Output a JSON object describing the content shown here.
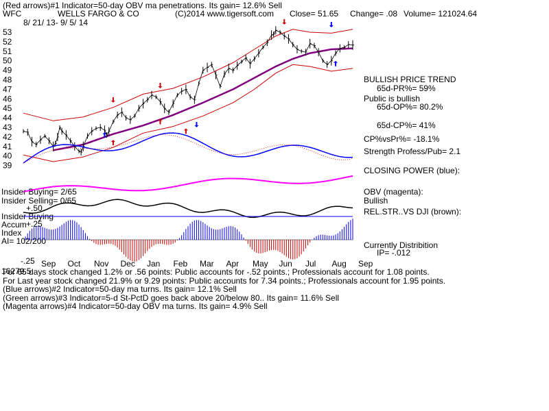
{
  "header": {
    "line1": "(Red arrows)#1 Indicator=50-day OBV ma penetrations. Its gain= 12.6% Sell",
    "ticker": "WFC",
    "company": "WELLS FARGO & CO",
    "copyright": "(C)2014 www.tigersoft.com",
    "close": "Close=  51.65",
    "change": "Change= .08",
    "volume": "Volume= 121024.64",
    "date_range": "8/ 21/ 13- 9/ 5/ 14"
  },
  "right_panel": {
    "trend_title": "BULLISH PRICE TREND",
    "pr65": "65d-PR%= 59%",
    "public": "Public is bullish",
    "op65": "65d-OP%= 80.2%",
    "cp65": "65d-CP%= 41%",
    "cpvspr": "CP%vsPr%= -18.1%",
    "strength": "Strength Profess/Pub= 2.1",
    "closing_power": "CLOSING POWER (blue):",
    "obv": "OBV (magenta):",
    "obv_state": "Bullish",
    "relstr": "REL.STR..VS DJI (brown):",
    "dist": "Currently Distribition",
    "ip": "IP= -.012"
  },
  "left_panel": {
    "insider_buying": "Insider Buying= 2/65",
    "insider_selling": "Insider Selling= 0/65",
    "insider_buying2": "Insider Buying",
    "accum": "Accum",
    "index": "Index",
    "ai": "AI= 102/200",
    "plus25": "+.25",
    "plus50": "+.50",
    "minus25": "-.25",
    "overlap": "16279.5"
  },
  "footer": {
    "line1": "For 65 days stock changed  1.2% or  .56 points:  Public accounts for -.52 points.;  Professionals account for  1.08 points.",
    "line2": "For Last year stock changed  21.9% or  9.29 points:  Public accounts for  7.34 points.;  Professionals account for  1.95 points.",
    "line3": "(Blue arrows)#2 Indicator=50-day ma turns. Its gain= 12.1% Sell",
    "line4": "(Green arrows)#3 Indicator=5-d St-PctD goes back above 20/below 80.. Its gain= 11.6% Sell",
    "line5": "(Magenta arrows)#4 Indicator=50-day OBV ma turns. Its gain= 4.9% Sell"
  },
  "chart_data": {
    "type": "line",
    "y_ticks": [
      53,
      52,
      51,
      50,
      49,
      48,
      47,
      46,
      45,
      44,
      43,
      42,
      41,
      40,
      39
    ],
    "x_ticks": [
      "Sep",
      "Oct",
      "Nov",
      "Dec",
      "Jan",
      "Feb",
      "Mar",
      "Apr",
      "May",
      "Jun",
      "Jul",
      "Aug",
      "Sep"
    ],
    "colors": {
      "price": "#000000",
      "bands": "#cc0000",
      "ma": "#800080",
      "closing_power": "#0000ff",
      "obv": "#ff00ff",
      "relstr": "#000000",
      "accum_pos": "#0000ff",
      "accum_neg": "#cc0000"
    },
    "price_series": [
      [
        0,
        42.6
      ],
      [
        2,
        42.5
      ],
      [
        4,
        41.5
      ],
      [
        6,
        41.2
      ],
      [
        8,
        41.7
      ],
      [
        10,
        42.1
      ],
      [
        12,
        41.6
      ],
      [
        14,
        41.0
      ],
      [
        15,
        41.3
      ],
      [
        16,
        42.0
      ],
      [
        17,
        43.0
      ],
      [
        18,
        42.6
      ],
      [
        20,
        42.2
      ],
      [
        22,
        41.6
      ],
      [
        24,
        41.0
      ],
      [
        26,
        40.5
      ],
      [
        27,
        40.4
      ],
      [
        28,
        41.0
      ],
      [
        30,
        42.1
      ],
      [
        32,
        42.6
      ],
      [
        34,
        42.9
      ],
      [
        36,
        43.0
      ],
      [
        38,
        42.7
      ],
      [
        39,
        42.2
      ],
      [
        40,
        42.6
      ],
      [
        42,
        43.6
      ],
      [
        44,
        44.3
      ],
      [
        46,
        44.6
      ],
      [
        48,
        44.0
      ],
      [
        50,
        43.8
      ],
      [
        52,
        44.2
      ],
      [
        54,
        45.0
      ],
      [
        56,
        45.5
      ],
      [
        58,
        45.9
      ],
      [
        60,
        46.4
      ],
      [
        62,
        46.2
      ],
      [
        64,
        45.7
      ],
      [
        66,
        45.0
      ],
      [
        68,
        44.6
      ],
      [
        70,
        45.5
      ],
      [
        72,
        46.4
      ],
      [
        74,
        46.8
      ],
      [
        76,
        47.0
      ],
      [
        78,
        46.2
      ],
      [
        80,
        45.9
      ],
      [
        82,
        47.6
      ],
      [
        84,
        49.0
      ],
      [
        86,
        49.3
      ],
      [
        88,
        49.6
      ],
      [
        90,
        48.5
      ],
      [
        92,
        47.3
      ],
      [
        94,
        48.6
      ],
      [
        96,
        49.2
      ],
      [
        98,
        49.0
      ],
      [
        100,
        49.5
      ],
      [
        102,
        49.9
      ],
      [
        104,
        50.3
      ],
      [
        106,
        49.7
      ],
      [
        108,
        50.2
      ],
      [
        110,
        50.8
      ],
      [
        112,
        51.4
      ],
      [
        114,
        51.9
      ],
      [
        116,
        52.7
      ],
      [
        117,
        52.8
      ],
      [
        118,
        53.2
      ],
      [
        120,
        53.0
      ],
      [
        122,
        52.6
      ],
      [
        124,
        52.3
      ],
      [
        126,
        51.7
      ],
      [
        128,
        51.2
      ],
      [
        130,
        51.0
      ],
      [
        132,
        50.9
      ],
      [
        134,
        51.8
      ],
      [
        136,
        51.6
      ],
      [
        138,
        50.9
      ],
      [
        140,
        50.0
      ],
      [
        142,
        49.6
      ],
      [
        144,
        50.0
      ],
      [
        146,
        50.8
      ],
      [
        148,
        51.3
      ],
      [
        150,
        51.4
      ],
      [
        152,
        51.7
      ],
      [
        154,
        51.65
      ]
    ],
    "ma_series": [
      [
        14,
        40.6
      ],
      [
        28,
        41.2
      ],
      [
        42,
        42.3
      ],
      [
        56,
        43.2
      ],
      [
        70,
        44.3
      ],
      [
        84,
        45.6
      ],
      [
        98,
        47.0
      ],
      [
        108,
        48.2
      ],
      [
        118,
        49.4
      ],
      [
        126,
        50.2
      ],
      [
        134,
        50.8
      ],
      [
        144,
        51.2
      ],
      [
        154,
        51.3
      ]
    ],
    "upper_band": [
      [
        0,
        44.5
      ],
      [
        14,
        43.7
      ],
      [
        28,
        44.1
      ],
      [
        42,
        45.1
      ],
      [
        56,
        46.5
      ],
      [
        70,
        47.1
      ],
      [
        84,
        48.3
      ],
      [
        98,
        49.8
      ],
      [
        108,
        51.2
      ],
      [
        118,
        52.6
      ],
      [
        126,
        53.3
      ],
      [
        134,
        53.0
      ],
      [
        144,
        52.9
      ],
      [
        154,
        53.3
      ]
    ],
    "lower_band": [
      [
        0,
        40.1
      ],
      [
        14,
        39.4
      ],
      [
        28,
        39.9
      ],
      [
        42,
        40.9
      ],
      [
        56,
        42.4
      ],
      [
        70,
        43.1
      ],
      [
        84,
        44.2
      ],
      [
        98,
        45.6
      ],
      [
        108,
        47.0
      ],
      [
        118,
        48.7
      ],
      [
        126,
        49.6
      ],
      [
        134,
        49.4
      ],
      [
        144,
        48.9
      ],
      [
        154,
        49.2
      ]
    ],
    "arrows": {
      "red_down": [
        [
          42,
          45.6
        ],
        [
          64,
          47.1
        ],
        [
          122,
          53.8
        ]
      ],
      "red_up": [
        [
          42,
          41.7
        ],
        [
          64,
          43.9
        ],
        [
          76,
          42.9
        ]
      ],
      "blue_up": [
        [
          38,
          42.5
        ]
      ],
      "blue_down": [
        [
          81,
          43.0
        ],
        [
          144,
          53.5
        ]
      ],
      "blue_up_late": [
        [
          146,
          50.0
        ]
      ]
    }
  }
}
